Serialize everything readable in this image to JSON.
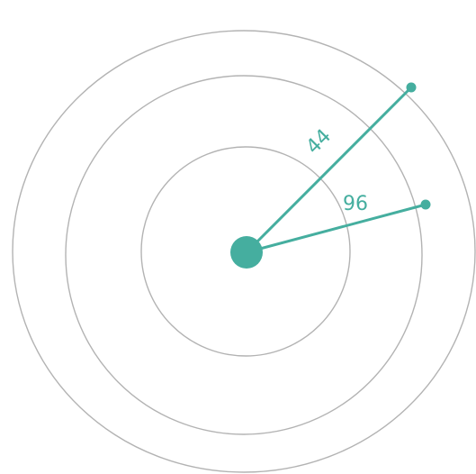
{
  "diagram": {
    "accent_color": "#45ae9f",
    "ring_color": "#b3b3b3",
    "rings": 3,
    "labels": {
      "upper": "44",
      "lower": "96"
    }
  }
}
